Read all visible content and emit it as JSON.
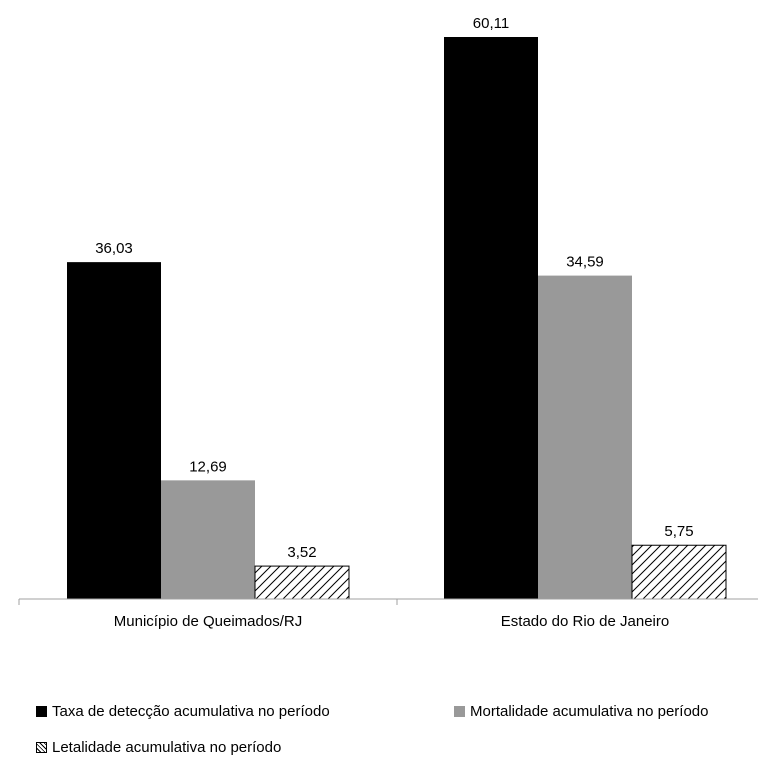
{
  "chart_data": {
    "type": "bar",
    "categories": [
      "Município de Queimados/RJ",
      "Estado do Rio de Janeiro"
    ],
    "series": [
      {
        "name": "Taxa de detecção acumulativa no período",
        "values": [
          36.03,
          60.11
        ],
        "color": "#000000",
        "pattern": "solid"
      },
      {
        "name": "Mortalidade acumulativa no período",
        "values": [
          12.69,
          34.59
        ],
        "color": "#999999",
        "pattern": "solid"
      },
      {
        "name": "Letalidade acumulativa no período",
        "values": [
          3.52,
          5.75
        ],
        "color": "#ffffff",
        "pattern": "diagonal-hatch"
      }
    ],
    "value_labels": [
      [
        "36,03",
        "60,11"
      ],
      [
        "12,69",
        "34,59"
      ],
      [
        "3,52",
        "5,75"
      ]
    ],
    "title": "",
    "xlabel": "",
    "ylabel": "",
    "ylim": [
      0,
      60.11
    ],
    "grid": false,
    "legend_position": "bottom"
  }
}
